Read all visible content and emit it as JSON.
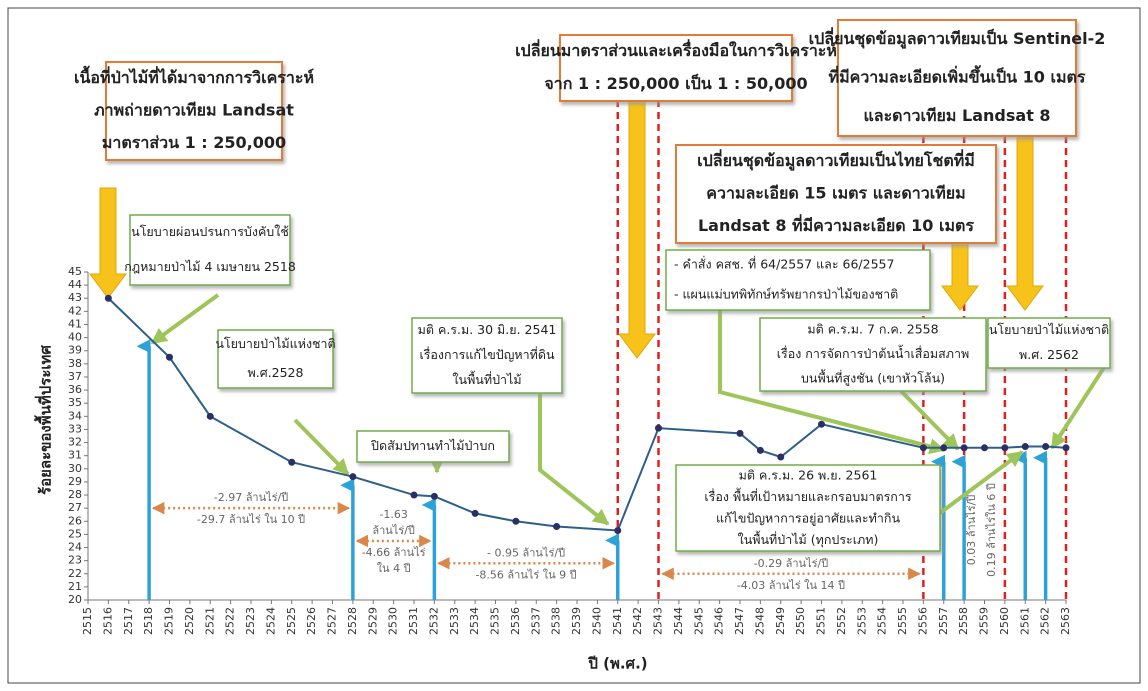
{
  "chart_data": {
    "type": "line",
    "xlabel": "ปี (พ.ศ.)",
    "ylabel": "ร้อยละของพื้นที่ประเทศ",
    "color": "#2e5f8a",
    "x": [
      2516,
      2519,
      2521,
      2525,
      2528,
      2531,
      2532,
      2534,
      2536,
      2538,
      2541,
      2543,
      2547,
      2548,
      2549,
      2551,
      2556,
      2557,
      2558,
      2559,
      2560,
      2561,
      2562,
      2563
    ],
    "values": [
      43.0,
      38.5,
      34.0,
      30.5,
      29.4,
      28.0,
      27.9,
      26.6,
      26.0,
      25.6,
      25.3,
      33.1,
      32.7,
      31.4,
      30.9,
      33.4,
      31.6,
      31.6,
      31.6,
      31.6,
      31.6,
      31.7,
      31.7,
      31.6
    ],
    "xlim": [
      2515,
      2563
    ],
    "ylim": [
      20,
      45
    ],
    "xticks": [
      2515,
      2516,
      2517,
      2518,
      2519,
      2520,
      2521,
      2522,
      2523,
      2524,
      2525,
      2526,
      2527,
      2528,
      2529,
      2530,
      2531,
      2532,
      2533,
      2534,
      2535,
      2536,
      2537,
      2538,
      2539,
      2540,
      2541,
      2542,
      2543,
      2544,
      2545,
      2546,
      2547,
      2548,
      2549,
      2550,
      2551,
      2552,
      2553,
      2554,
      2555,
      2556,
      2557,
      2558,
      2559,
      2560,
      2561,
      2562,
      2563
    ],
    "yticks": [
      20,
      21,
      22,
      23,
      24,
      25,
      26,
      27,
      28,
      29,
      30,
      31,
      32,
      33,
      34,
      35,
      36,
      37,
      38,
      39,
      40,
      41,
      42,
      43,
      44,
      45
    ],
    "period_lines": [
      2541,
      2543,
      2556,
      2558,
      2560,
      2563
    ],
    "up_arrows": [
      {
        "x": 2518,
        "y": 39.8
      },
      {
        "x": 2528,
        "y": 29.2
      },
      {
        "x": 2532,
        "y": 27.7
      },
      {
        "x": 2541,
        "y": 25.0
      },
      {
        "x": 2557,
        "y": 31.0
      },
      {
        "x": 2558,
        "y": 31.0
      },
      {
        "x": 2561,
        "y": 31.3
      },
      {
        "x": 2562,
        "y": 31.3
      }
    ],
    "range_arrows": [
      {
        "from": 2518,
        "to": 2528,
        "y": 27.0,
        "above": [
          "-2.97 ล้านไร่/ปี"
        ],
        "below": [
          "-29.7 ล้านไร่ ใน 10 ปี"
        ]
      },
      {
        "from": 2528,
        "to": 2532,
        "y": 24.5,
        "above": [
          "-1.63",
          "ล้านไร่/ปี"
        ],
        "below": [
          "-4.66 ล้านไร่",
          "ใน 4 ปี"
        ]
      },
      {
        "from": 2532,
        "to": 2541,
        "y": 22.8,
        "above": [
          "- 0.95 ล้านไร่/ปี"
        ],
        "below": [
          "-8.56 ล้านไร่ ใน 9 ปี"
        ]
      },
      {
        "from": 2543,
        "to": 2556,
        "y": 22.0,
        "above": [
          "-0.29 ล้านไร่/ปี"
        ],
        "below": [
          "-4.03 ล้านไร่ ใน 14 ปี"
        ]
      }
    ],
    "vertical_notes": [
      "0.03 ล้านไร่/ปี",
      "0.19 ล้านไร่ใน 6 ปี"
    ],
    "annotations": [
      {
        "lines": [
          "เนื้อที่ป่าไม้ที่ได้มาจากการวิเคราะห์",
          "ภาพถ่ายดาวเทียม Landsat",
          "มาตราส่วน 1 : 250,000"
        ]
      },
      {
        "lines": [
          "เปลี่ยนมาตราส่วนและเครื่องมือในการวิเคราะห์",
          "จาก 1 : 250,000 เป็น 1 : 50,000"
        ]
      },
      {
        "lines": [
          "เปลี่ยนชุดข้อมูลดาวเทียมเป็น Sentinel-2",
          "ที่มีความละเอียดเพิ่มขึ้นเป็น 10 เมตร",
          "และดาวเทียม Landsat 8"
        ]
      },
      {
        "lines": [
          "เปลี่ยนชุดข้อมูลดาวเทียมเป็นไทยโชตที่มี",
          "ความละเอียด 15 เมตร และดาวเทียม",
          "Landsat 8 ที่มีความละเอียด 10 เมตร"
        ]
      },
      {
        "lines": [
          "นโยบายผ่อนปรนการบังคับใช้",
          "กฎหมายป่าไม้ 4 เมษายน 2518"
        ]
      },
      {
        "lines": [
          "นโยบายป่าไม้แห่งชาติ",
          "พ.ศ.2528"
        ]
      },
      {
        "lines": [
          "ปิดสัมปทานทำไม้ป่าบก"
        ]
      },
      {
        "lines": [
          "มติ ค.ร.ม. 30 มิ.ย. 2541",
          "เรื่องการแก้ไขปัญหาที่ดิน",
          "ในพื้นที่ป่าไม้"
        ]
      },
      {
        "lines": [
          "- คำสั่ง คสช. ที่ 64/2557 และ 66/2557",
          "- แผนแม่บทพิทักษ์ทรัพยากรป่าไม้ของชาติ"
        ]
      },
      {
        "lines": [
          "มติ ค.ร.ม. 7 ก.ค. 2558",
          "เรื่อง การจัดการป่าต้นน้ำเสื่อมสภาพ",
          "บนพื้นที่สูงชัน (เขาหัวโล้น)"
        ]
      },
      {
        "lines": [
          "นโยบายป่าไม้แห่งชาติ",
          "พ.ศ. 2562"
        ]
      },
      {
        "lines": [
          "มติ ค.ร.ม. 26 พ.ย. 2561",
          "เรื่อง พื้นที่เป้าหมายและกรอบมาตรการ",
          "แก้ไขปัญหาการอยู่อาศัยและทำกิน",
          "ในพื้นที่ป่าไม้ (ทุกประเภท)"
        ]
      }
    ]
  }
}
